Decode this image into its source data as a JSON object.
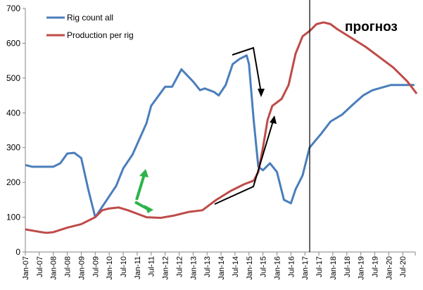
{
  "chart_data": {
    "type": "line",
    "title": "",
    "xlabel": "",
    "ylabel": "",
    "ylim": [
      0,
      700
    ],
    "yticks": [
      0,
      100,
      200,
      300,
      400,
      500,
      600,
      700
    ],
    "x_start": "Jan-07",
    "x_tick_labels": [
      "Jan-07",
      "Jul-07",
      "Jan-08",
      "Jul-08",
      "Jan-09",
      "Jul-09",
      "Jan-10",
      "Jul-10",
      "Jan-11",
      "Jul-11",
      "Jan-12",
      "Jul-12",
      "Jan-13",
      "Jul-13",
      "Jan-14",
      "Jul-14",
      "Jan-15",
      "Jul-15",
      "Jan-16",
      "Jul-16",
      "Jan-17",
      "Jul-17",
      "Jan-18",
      "Jul-18",
      "Jan-19",
      "Jul-19",
      "Jan-20",
      "Jul-20"
    ],
    "x_unit": "months since Jan-07",
    "legend_position": "top-left",
    "forecast_start_month": 122,
    "forecast_label": "прогноз",
    "series": [
      {
        "name": "Rig count all",
        "color": "#4a7ebb",
        "points": [
          [
            0,
            250
          ],
          [
            3,
            245
          ],
          [
            6,
            245
          ],
          [
            12,
            245
          ],
          [
            15,
            255
          ],
          [
            18,
            283
          ],
          [
            21,
            285
          ],
          [
            24,
            270
          ],
          [
            27,
            180
          ],
          [
            30,
            100
          ],
          [
            34,
            140
          ],
          [
            39,
            190
          ],
          [
            42,
            240
          ],
          [
            46,
            280
          ],
          [
            52,
            370
          ],
          [
            54,
            420
          ],
          [
            60,
            475
          ],
          [
            63,
            475
          ],
          [
            67,
            525
          ],
          [
            72,
            490
          ],
          [
            75,
            465
          ],
          [
            77,
            470
          ],
          [
            81,
            460
          ],
          [
            83,
            450
          ],
          [
            86,
            480
          ],
          [
            89,
            540
          ],
          [
            92,
            555
          ],
          [
            95,
            565
          ],
          [
            96,
            540
          ],
          [
            98,
            380
          ],
          [
            100,
            245
          ],
          [
            102,
            235
          ],
          [
            105,
            255
          ],
          [
            108,
            230
          ],
          [
            111,
            150
          ],
          [
            114,
            140
          ],
          [
            116,
            180
          ],
          [
            119,
            220
          ],
          [
            122,
            300
          ],
          [
            127,
            340
          ],
          [
            131,
            375
          ],
          [
            136,
            395
          ],
          [
            140,
            420
          ],
          [
            145,
            450
          ],
          [
            149,
            465
          ],
          [
            157,
            480
          ],
          [
            167,
            480
          ]
        ]
      },
      {
        "name": "Production per rig",
        "color": "#be4b48",
        "points": [
          [
            0,
            65
          ],
          [
            6,
            58
          ],
          [
            9,
            55
          ],
          [
            12,
            57
          ],
          [
            18,
            70
          ],
          [
            24,
            80
          ],
          [
            30,
            100
          ],
          [
            33,
            120
          ],
          [
            36,
            125
          ],
          [
            40,
            128
          ],
          [
            44,
            120
          ],
          [
            48,
            110
          ],
          [
            52,
            100
          ],
          [
            58,
            98
          ],
          [
            64,
            105
          ],
          [
            70,
            115
          ],
          [
            76,
            120
          ],
          [
            82,
            150
          ],
          [
            88,
            175
          ],
          [
            94,
            195
          ],
          [
            98,
            205
          ],
          [
            100,
            230
          ],
          [
            102,
            300
          ],
          [
            104,
            380
          ],
          [
            106,
            420
          ],
          [
            110,
            440
          ],
          [
            113,
            480
          ],
          [
            116,
            570
          ],
          [
            119,
            620
          ],
          [
            122,
            635
          ],
          [
            125,
            655
          ],
          [
            128,
            660
          ],
          [
            131,
            655
          ],
          [
            134,
            640
          ],
          [
            140,
            615
          ],
          [
            146,
            590
          ],
          [
            152,
            560
          ],
          [
            158,
            530
          ],
          [
            164,
            490
          ],
          [
            168,
            455
          ]
        ]
      }
    ]
  }
}
